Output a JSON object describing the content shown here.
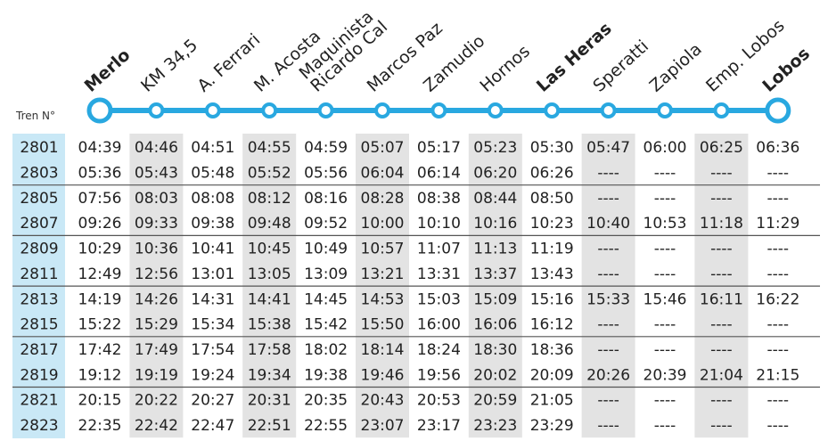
{
  "header": {
    "train_label": "Tren N°",
    "stations": [
      {
        "lines": [
          "Merlo"
        ],
        "bold": true
      },
      {
        "lines": [
          "KM 34,5"
        ],
        "bold": false
      },
      {
        "lines": [
          "A. Ferrari"
        ],
        "bold": false
      },
      {
        "lines": [
          "M. Acosta"
        ],
        "bold": false
      },
      {
        "lines": [
          "Maquinista",
          "Ricardo Cal"
        ],
        "bold": false
      },
      {
        "lines": [
          "Marcos Paz"
        ],
        "bold": false
      },
      {
        "lines": [
          "Zamudio"
        ],
        "bold": false
      },
      {
        "lines": [
          "Hornos"
        ],
        "bold": false
      },
      {
        "lines": [
          "Las Heras"
        ],
        "bold": true
      },
      {
        "lines": [
          "Speratti"
        ],
        "bold": false
      },
      {
        "lines": [
          "Zapiola"
        ],
        "bold": false
      },
      {
        "lines": [
          "Emp. Lobos"
        ],
        "bold": false
      },
      {
        "lines": [
          "Lobos"
        ],
        "bold": true
      }
    ]
  },
  "table": {
    "rows": [
      {
        "train": "2801",
        "times": [
          "04:39",
          "04:46",
          "04:51",
          "04:55",
          "04:59",
          "05:07",
          "05:17",
          "05:23",
          "05:30",
          "05:47",
          "06:00",
          "06:25",
          "06:36"
        ]
      },
      {
        "train": "2803",
        "times": [
          "05:36",
          "05:43",
          "05:48",
          "05:52",
          "05:56",
          "06:04",
          "06:14",
          "06:20",
          "06:26",
          "----",
          "----",
          "----",
          "----"
        ]
      },
      {
        "train": "2805",
        "times": [
          "07:56",
          "08:03",
          "08:08",
          "08:12",
          "08:16",
          "08:28",
          "08:38",
          "08:44",
          "08:50",
          "----",
          "----",
          "----",
          "----"
        ]
      },
      {
        "train": "2807",
        "times": [
          "09:26",
          "09:33",
          "09:38",
          "09:48",
          "09:52",
          "10:00",
          "10:10",
          "10:16",
          "10:23",
          "10:40",
          "10:53",
          "11:18",
          "11:29"
        ]
      },
      {
        "train": "2809",
        "times": [
          "10:29",
          "10:36",
          "10:41",
          "10:45",
          "10:49",
          "10:57",
          "11:07",
          "11:13",
          "11:19",
          "----",
          "----",
          "----",
          "----"
        ]
      },
      {
        "train": "2811",
        "times": [
          "12:49",
          "12:56",
          "13:01",
          "13:05",
          "13:09",
          "13:21",
          "13:31",
          "13:37",
          "13:43",
          "----",
          "----",
          "----",
          "----"
        ]
      },
      {
        "train": "2813",
        "times": [
          "14:19",
          "14:26",
          "14:31",
          "14:41",
          "14:45",
          "14:53",
          "15:03",
          "15:09",
          "15:16",
          "15:33",
          "15:46",
          "16:11",
          "16:22"
        ]
      },
      {
        "train": "2815",
        "times": [
          "15:22",
          "15:29",
          "15:34",
          "15:38",
          "15:42",
          "15:50",
          "16:00",
          "16:06",
          "16:12",
          "----",
          "----",
          "----",
          "----"
        ]
      },
      {
        "train": "2817",
        "times": [
          "17:42",
          "17:49",
          "17:54",
          "17:58",
          "18:02",
          "18:14",
          "18:24",
          "18:30",
          "18:36",
          "----",
          "----",
          "----",
          "----"
        ]
      },
      {
        "train": "2819",
        "times": [
          "19:12",
          "19:19",
          "19:24",
          "19:34",
          "19:38",
          "19:46",
          "19:56",
          "20:02",
          "20:09",
          "20:26",
          "20:39",
          "21:04",
          "21:15"
        ]
      },
      {
        "train": "2821",
        "times": [
          "20:15",
          "20:22",
          "20:27",
          "20:31",
          "20:35",
          "20:43",
          "20:53",
          "20:59",
          "21:05",
          "----",
          "----",
          "----",
          "----"
        ]
      },
      {
        "train": "2823",
        "times": [
          "22:35",
          "22:42",
          "22:47",
          "22:51",
          "22:55",
          "23:07",
          "23:17",
          "23:23",
          "23:29",
          "----",
          "----",
          "----",
          "----"
        ]
      }
    ]
  }
}
